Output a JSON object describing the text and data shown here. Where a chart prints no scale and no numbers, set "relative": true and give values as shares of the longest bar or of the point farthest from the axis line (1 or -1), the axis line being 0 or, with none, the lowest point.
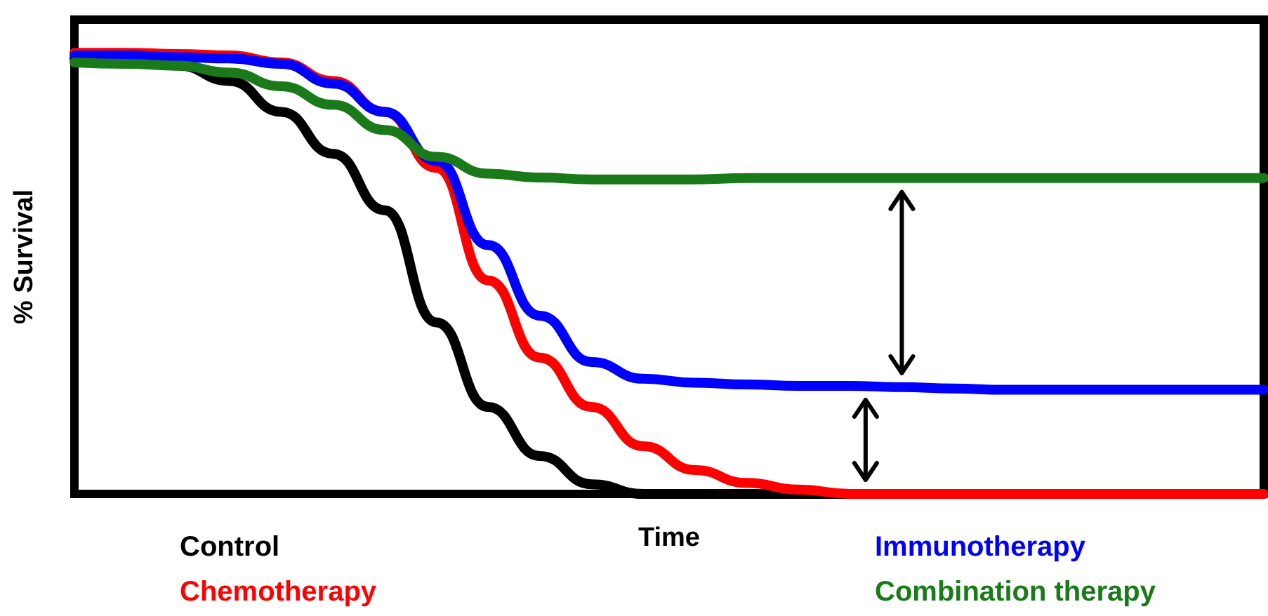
{
  "chart_data": {
    "type": "line",
    "xlabel": "Time",
    "ylabel": "% Survival",
    "relative": true,
    "legend": "bottom",
    "marker": "none",
    "categories": [
      null,
      null,
      null,
      null,
      null,
      null,
      null,
      null,
      null,
      null,
      null,
      null,
      null,
      null,
      null,
      null,
      null,
      null,
      null,
      null,
      null,
      null,
      null,
      null
    ],
    "series": [
      {
        "name": "Control",
        "color": "#000000",
        "values": [
          0.987,
          0.984,
          0.971,
          0.936,
          0.866,
          0.771,
          0.643,
          0.389,
          0.197,
          0.086,
          0.022,
          0,
          0,
          0,
          0,
          0,
          0,
          0,
          0,
          0,
          0,
          0,
          0,
          0
        ]
      },
      {
        "name": "Chemotherapy",
        "color": "#ff0000",
        "values": [
          1,
          1,
          0.997,
          0.994,
          0.978,
          0.936,
          0.866,
          0.739,
          0.484,
          0.309,
          0.197,
          0.108,
          0.054,
          0.025,
          0.01,
          0,
          0,
          0,
          0,
          0,
          0,
          0,
          0,
          0
        ]
      },
      {
        "name": "Immunotherapy",
        "color": "#0000ff",
        "values": [
          0.994,
          0.994,
          0.99,
          0.987,
          0.975,
          0.93,
          0.866,
          0.755,
          0.564,
          0.404,
          0.299,
          0.261,
          0.252,
          0.248,
          0.245,
          0.245,
          0.242,
          0.239,
          0.236,
          0.236,
          0.236,
          0.236,
          0.236,
          0.236
        ]
      },
      {
        "name": "Combination therapy",
        "color": "#1a7a1a",
        "values": [
          0.978,
          0.975,
          0.971,
          0.955,
          0.924,
          0.882,
          0.825,
          0.764,
          0.726,
          0.717,
          0.713,
          0.713,
          0.713,
          0.716,
          0.716,
          0.716,
          0.716,
          0.716,
          0.716,
          0.716,
          0.716,
          0.716,
          0.716,
          0.716
        ]
      }
    ]
  }
}
